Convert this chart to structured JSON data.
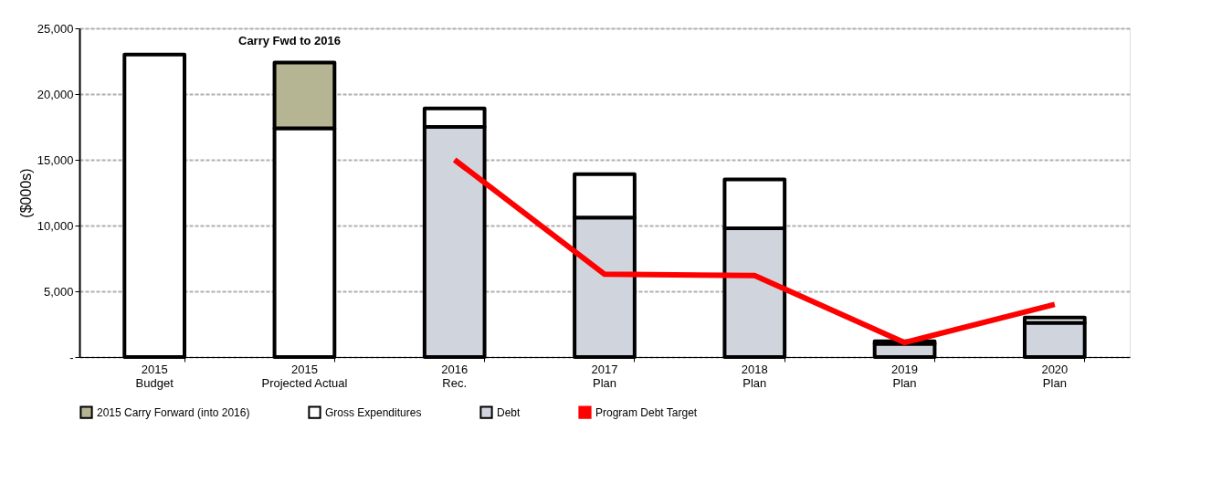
{
  "chart_data": {
    "type": "bar",
    "stacked": true,
    "ylabel": "($000s)",
    "categories": [
      "2015\nBudget",
      "2015\nProjected Actual",
      "2016\nRec.",
      "2017\nPlan",
      "2018\nPlan",
      "2019\nPlan",
      "2020\nPlan"
    ],
    "series": [
      {
        "name": "Debt",
        "color": "#d0d4dc",
        "values": [
          null,
          null,
          17500,
          10600,
          9800,
          1000,
          2600
        ]
      },
      {
        "name": "Gross Expenditures",
        "color": "#ffffff",
        "values": [
          23000,
          17400,
          1400,
          3300,
          3700,
          200,
          400
        ]
      },
      {
        "name": "2015 Carry Forward (into 2016)",
        "color": "#b5b594",
        "values": [
          null,
          5000,
          null,
          null,
          null,
          null,
          null
        ]
      },
      {
        "name": "Program Debt Target",
        "type": "line",
        "color": "#ff0000",
        "values": [
          null,
          null,
          15000,
          6300,
          6200,
          1100,
          4000
        ]
      }
    ],
    "ylim": [
      0,
      25000
    ],
    "yticks": [
      {
        "value": 0,
        "label": "-"
      },
      {
        "value": 5000,
        "label": "5,000"
      },
      {
        "value": 10000,
        "label": "10,000"
      },
      {
        "value": 15000,
        "label": "15,000"
      },
      {
        "value": 20000,
        "label": "20,000"
      },
      {
        "value": 25000,
        "label": "25,000"
      }
    ],
    "grid": "y",
    "legend": "bottom",
    "annotations": [
      "Carry Fwd to 2016"
    ]
  }
}
